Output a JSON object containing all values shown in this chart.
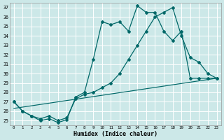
{
  "bg_color": "#cce8e8",
  "grid_color": "#b0d4d4",
  "line_color": "#006868",
  "xlim": [
    -0.5,
    23.5
  ],
  "ylim": [
    24.5,
    37.5
  ],
  "xticks": [
    0,
    1,
    2,
    3,
    4,
    5,
    6,
    7,
    8,
    9,
    10,
    11,
    12,
    13,
    14,
    15,
    16,
    17,
    18,
    19,
    20,
    21,
    22,
    23
  ],
  "yticks": [
    25,
    26,
    27,
    28,
    29,
    30,
    31,
    32,
    33,
    34,
    35,
    36,
    37
  ],
  "line1_x": [
    0,
    1,
    2,
    3,
    4,
    5,
    6,
    7,
    8,
    9,
    10,
    11,
    12,
    13,
    14,
    15,
    16,
    17,
    18,
    19,
    20,
    21,
    22,
    23
  ],
  "line1_y": [
    27.0,
    26.0,
    25.5,
    25.0,
    25.2,
    24.8,
    25.1,
    27.5,
    28.0,
    31.5,
    35.5,
    35.2,
    35.5,
    34.5,
    37.2,
    36.5,
    36.5,
    34.5,
    33.5,
    34.5,
    29.5,
    29.5,
    29.5,
    29.5
  ],
  "line2_x": [
    0,
    1,
    2,
    3,
    4,
    5,
    6,
    7,
    8,
    9,
    10,
    11,
    12,
    13,
    14,
    15,
    16,
    17,
    18,
    19,
    20,
    21,
    22,
    23
  ],
  "line2_y": [
    27.0,
    26.0,
    25.5,
    25.2,
    25.5,
    25.0,
    25.3,
    27.3,
    27.8,
    28.0,
    28.5,
    29.0,
    30.0,
    31.5,
    33.0,
    34.5,
    36.0,
    36.5,
    37.0,
    34.0,
    31.7,
    31.2,
    30.0,
    29.5
  ],
  "line3_x": [
    0,
    23
  ],
  "line3_y": [
    26.3,
    29.5
  ],
  "xlabel": "Humidex (Indice chaleur)"
}
